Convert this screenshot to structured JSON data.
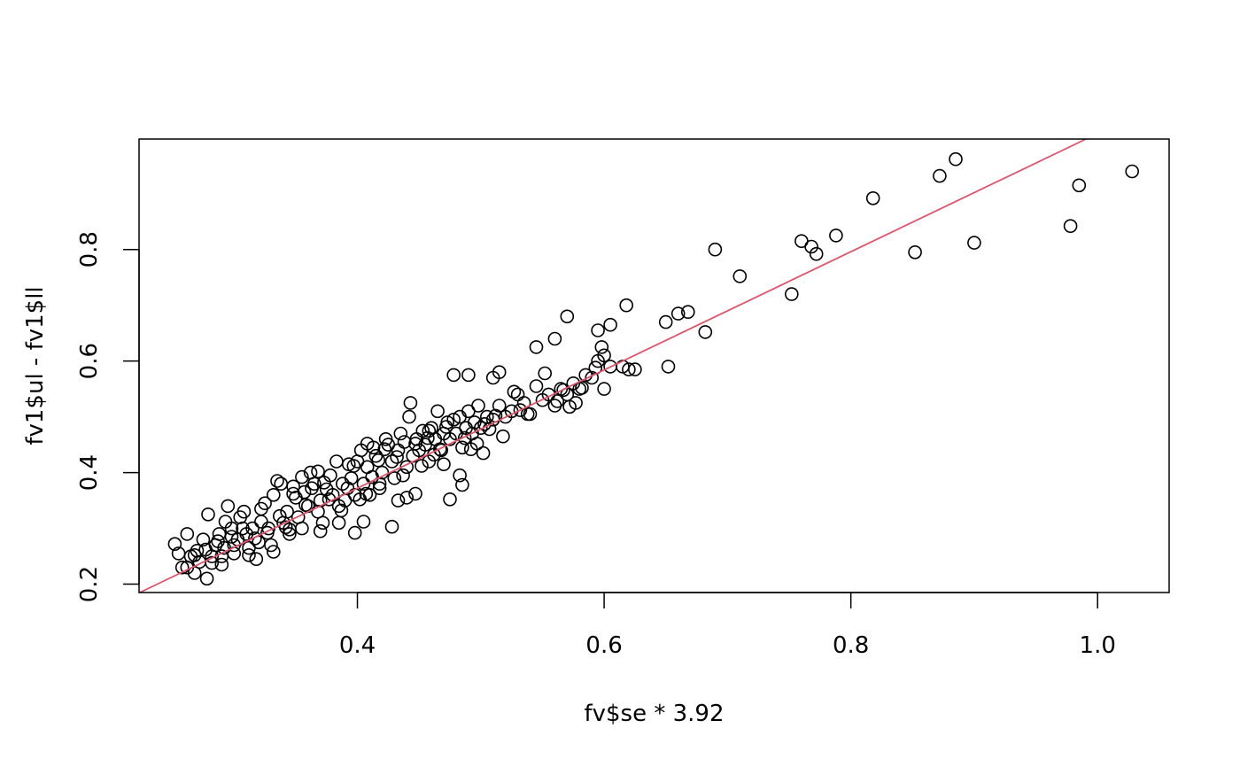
{
  "chart_data": {
    "type": "scatter",
    "title": "",
    "xlabel": "fv$se * 3.92",
    "ylabel": "fv1$ul - fv1$ll",
    "xlim": [
      0.223,
      1.058
    ],
    "ylim": [
      0.185,
      0.998
    ],
    "x_ticks": [
      0.4,
      0.6,
      0.8,
      1.0
    ],
    "x_tick_labels": [
      "0.4",
      "0.6",
      "0.8",
      "1.0"
    ],
    "y_ticks": [
      0.2,
      0.4,
      0.6,
      0.8
    ],
    "y_tick_labels": [
      "0.2",
      "0.4",
      "0.6",
      "0.8"
    ],
    "grid": false,
    "legend": "none",
    "point_style": "open-circle",
    "point_color": "#000000",
    "fit_line": {
      "slope": 1.06,
      "intercept": -0.052,
      "color": "#DF536B"
    },
    "points": [
      [
        0.252,
        0.272
      ],
      [
        0.255,
        0.255
      ],
      [
        0.258,
        0.23
      ],
      [
        0.262,
        0.29
      ],
      [
        0.265,
        0.25
      ],
      [
        0.268,
        0.22
      ],
      [
        0.27,
        0.26
      ],
      [
        0.272,
        0.24
      ],
      [
        0.275,
        0.28
      ],
      [
        0.278,
        0.21
      ],
      [
        0.279,
        0.325
      ],
      [
        0.282,
        0.25
      ],
      [
        0.285,
        0.27
      ],
      [
        0.288,
        0.29
      ],
      [
        0.29,
        0.235
      ],
      [
        0.292,
        0.265
      ],
      [
        0.295,
        0.34
      ],
      [
        0.298,
        0.3
      ],
      [
        0.3,
        0.255
      ],
      [
        0.303,
        0.28
      ],
      [
        0.305,
        0.32
      ],
      [
        0.308,
        0.33
      ],
      [
        0.31,
        0.29
      ],
      [
        0.312,
        0.265
      ],
      [
        0.315,
        0.3
      ],
      [
        0.318,
        0.245
      ],
      [
        0.32,
        0.275
      ],
      [
        0.322,
        0.335
      ],
      [
        0.325,
        0.345
      ],
      [
        0.328,
        0.3
      ],
      [
        0.33,
        0.27
      ],
      [
        0.332,
        0.36
      ],
      [
        0.335,
        0.385
      ],
      [
        0.338,
        0.38
      ],
      [
        0.34,
        0.31
      ],
      [
        0.343,
        0.33
      ],
      [
        0.345,
        0.29
      ],
      [
        0.348,
        0.375
      ],
      [
        0.35,
        0.355
      ],
      [
        0.352,
        0.32
      ],
      [
        0.355,
        0.3
      ],
      [
        0.357,
        0.365
      ],
      [
        0.36,
        0.34
      ],
      [
        0.362,
        0.4
      ],
      [
        0.365,
        0.38
      ],
      [
        0.368,
        0.33
      ],
      [
        0.37,
        0.35
      ],
      [
        0.372,
        0.31
      ],
      [
        0.375,
        0.37
      ],
      [
        0.378,
        0.395
      ],
      [
        0.38,
        0.36
      ],
      [
        0.383,
        0.42
      ],
      [
        0.385,
        0.34
      ],
      [
        0.388,
        0.38
      ],
      [
        0.39,
        0.35
      ],
      [
        0.393,
        0.415
      ],
      [
        0.395,
        0.39
      ],
      [
        0.398,
        0.36
      ],
      [
        0.4,
        0.42
      ],
      [
        0.403,
        0.44
      ],
      [
        0.405,
        0.38
      ],
      [
        0.408,
        0.41
      ],
      [
        0.41,
        0.36
      ],
      [
        0.413,
        0.445
      ],
      [
        0.415,
        0.43
      ],
      [
        0.418,
        0.38
      ],
      [
        0.42,
        0.4
      ],
      [
        0.423,
        0.46
      ],
      [
        0.425,
        0.45
      ],
      [
        0.428,
        0.42
      ],
      [
        0.43,
        0.39
      ],
      [
        0.433,
        0.44
      ],
      [
        0.435,
        0.47
      ],
      [
        0.438,
        0.455
      ],
      [
        0.44,
        0.41
      ],
      [
        0.442,
        0.5
      ],
      [
        0.445,
        0.43
      ],
      [
        0.448,
        0.46
      ],
      [
        0.45,
        0.44
      ],
      [
        0.453,
        0.475
      ],
      [
        0.455,
        0.45
      ],
      [
        0.458,
        0.42
      ],
      [
        0.46,
        0.48
      ],
      [
        0.463,
        0.46
      ],
      [
        0.465,
        0.51
      ],
      [
        0.468,
        0.44
      ],
      [
        0.47,
        0.47
      ],
      [
        0.473,
        0.49
      ],
      [
        0.475,
        0.46
      ],
      [
        0.478,
        0.495
      ],
      [
        0.48,
        0.47
      ],
      [
        0.483,
        0.5
      ],
      [
        0.485,
        0.445
      ],
      [
        0.488,
        0.48
      ],
      [
        0.49,
        0.51
      ],
      [
        0.493,
        0.47
      ],
      [
        0.495,
        0.49
      ],
      [
        0.498,
        0.52
      ],
      [
        0.5,
        0.48
      ],
      [
        0.505,
        0.5
      ],
      [
        0.51,
        0.495
      ],
      [
        0.515,
        0.52
      ],
      [
        0.52,
        0.5
      ],
      [
        0.525,
        0.51
      ],
      [
        0.53,
        0.54
      ],
      [
        0.535,
        0.525
      ],
      [
        0.54,
        0.505
      ],
      [
        0.545,
        0.555
      ],
      [
        0.55,
        0.53
      ],
      [
        0.555,
        0.54
      ],
      [
        0.56,
        0.52
      ],
      [
        0.565,
        0.55
      ],
      [
        0.57,
        0.54
      ],
      [
        0.575,
        0.56
      ],
      [
        0.58,
        0.55
      ],
      [
        0.585,
        0.575
      ],
      [
        0.59,
        0.57
      ],
      [
        0.595,
        0.6
      ],
      [
        0.6,
        0.55
      ],
      [
        0.605,
        0.59
      ],
      [
        0.615,
        0.59
      ],
      [
        0.62,
        0.585
      ],
      [
        0.56,
        0.64
      ],
      [
        0.545,
        0.625
      ],
      [
        0.515,
        0.58
      ],
      [
        0.51,
        0.57
      ],
      [
        0.49,
        0.575
      ],
      [
        0.478,
        0.575
      ],
      [
        0.57,
        0.68
      ],
      [
        0.595,
        0.655
      ],
      [
        0.598,
        0.625
      ],
      [
        0.6,
        0.61
      ],
      [
        0.605,
        0.665
      ],
      [
        0.618,
        0.7
      ],
      [
        0.65,
        0.67
      ],
      [
        0.652,
        0.59
      ],
      [
        0.66,
        0.685
      ],
      [
        0.668,
        0.688
      ],
      [
        0.682,
        0.652
      ],
      [
        0.69,
        0.8
      ],
      [
        0.71,
        0.752
      ],
      [
        0.752,
        0.72
      ],
      [
        0.76,
        0.815
      ],
      [
        0.768,
        0.805
      ],
      [
        0.772,
        0.792
      ],
      [
        0.788,
        0.825
      ],
      [
        0.818,
        0.892
      ],
      [
        0.852,
        0.795
      ],
      [
        0.872,
        0.932
      ],
      [
        0.885,
        0.962
      ],
      [
        0.9,
        0.812
      ],
      [
        0.978,
        0.842
      ],
      [
        0.985,
        0.915
      ],
      [
        1.028,
        0.94
      ],
      [
        0.398,
        0.292
      ],
      [
        0.405,
        0.312
      ],
      [
        0.428,
        0.303
      ],
      [
        0.433,
        0.35
      ],
      [
        0.44,
        0.355
      ],
      [
        0.447,
        0.362
      ],
      [
        0.475,
        0.352
      ],
      [
        0.485,
        0.378
      ],
      [
        0.37,
        0.295
      ],
      [
        0.385,
        0.31
      ],
      [
        0.345,
        0.298
      ],
      [
        0.332,
        0.258
      ],
      [
        0.312,
        0.252
      ],
      [
        0.29,
        0.25
      ],
      [
        0.3,
        0.27
      ],
      [
        0.262,
        0.23
      ],
      [
        0.443,
        0.525
      ],
      [
        0.458,
        0.475
      ],
      [
        0.47,
        0.415
      ],
      [
        0.483,
        0.395
      ],
      [
        0.502,
        0.435
      ],
      [
        0.507,
        0.478
      ],
      [
        0.518,
        0.465
      ],
      [
        0.527,
        0.545
      ],
      [
        0.538,
        0.505
      ],
      [
        0.562,
        0.528
      ],
      [
        0.572,
        0.518
      ],
      [
        0.582,
        0.552
      ],
      [
        0.593,
        0.588
      ],
      [
        0.625,
        0.585
      ],
      [
        0.355,
        0.392
      ],
      [
        0.368,
        0.402
      ],
      [
        0.392,
        0.372
      ],
      [
        0.402,
        0.352
      ],
      [
        0.412,
        0.392
      ],
      [
        0.418,
        0.372
      ],
      [
        0.437,
        0.395
      ],
      [
        0.452,
        0.412
      ],
      [
        0.462,
        0.432
      ],
      [
        0.467,
        0.442
      ],
      [
        0.487,
        0.462
      ],
      [
        0.497,
        0.452
      ],
      [
        0.503,
        0.487
      ],
      [
        0.348,
        0.362
      ],
      [
        0.358,
        0.342
      ],
      [
        0.377,
        0.352
      ],
      [
        0.387,
        0.332
      ],
      [
        0.407,
        0.362
      ],
      [
        0.417,
        0.422
      ],
      [
        0.432,
        0.428
      ],
      [
        0.322,
        0.312
      ],
      [
        0.327,
        0.292
      ],
      [
        0.337,
        0.322
      ],
      [
        0.342,
        0.302
      ],
      [
        0.298,
        0.285
      ],
      [
        0.307,
        0.3
      ],
      [
        0.317,
        0.282
      ],
      [
        0.277,
        0.262
      ],
      [
        0.282,
        0.238
      ],
      [
        0.268,
        0.252
      ],
      [
        0.287,
        0.277
      ],
      [
        0.293,
        0.312
      ],
      [
        0.363,
        0.372
      ],
      [
        0.373,
        0.382
      ],
      [
        0.397,
        0.412
      ],
      [
        0.408,
        0.452
      ],
      [
        0.422,
        0.442
      ],
      [
        0.447,
        0.452
      ],
      [
        0.457,
        0.462
      ],
      [
        0.472,
        0.482
      ],
      [
        0.492,
        0.442
      ],
      [
        0.512,
        0.502
      ],
      [
        0.532,
        0.512
      ],
      [
        0.552,
        0.578
      ],
      [
        0.567,
        0.548
      ],
      [
        0.577,
        0.525
      ]
    ]
  }
}
